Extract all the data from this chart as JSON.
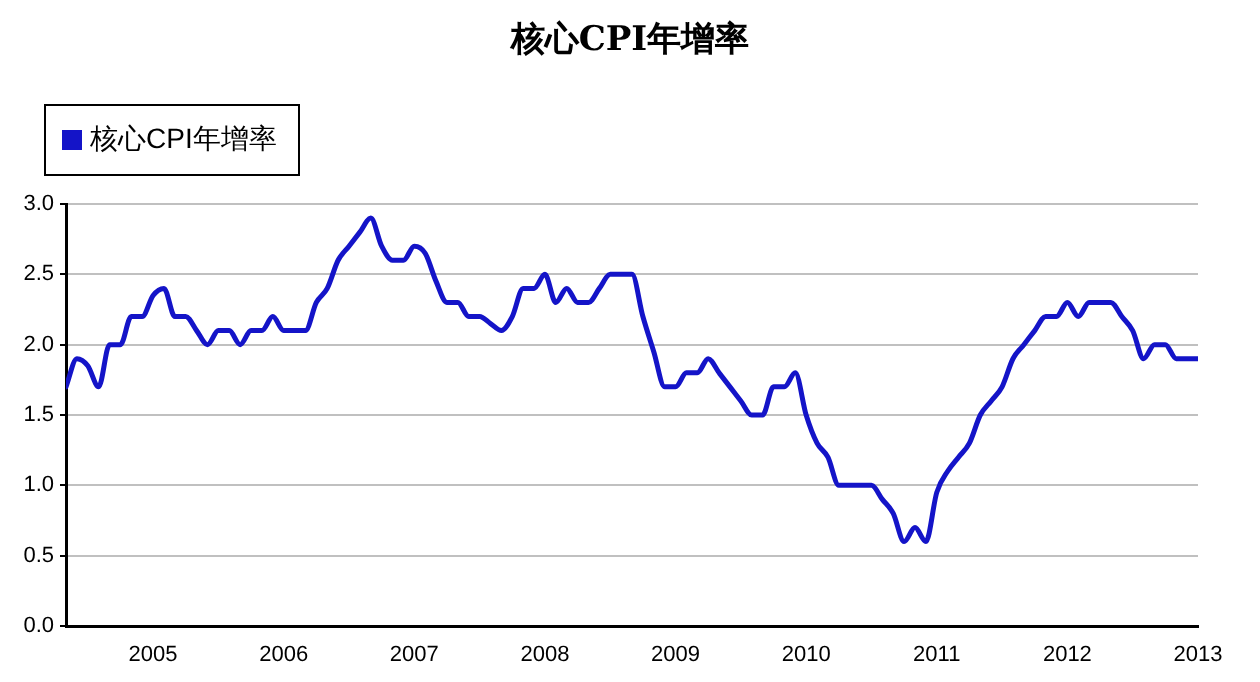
{
  "chart_data": {
    "type": "line",
    "title": "核心CPI年增率",
    "x": [
      "2004-05",
      "2004-06",
      "2004-07",
      "2004-08",
      "2004-09",
      "2004-10",
      "2004-11",
      "2004-12",
      "2005-01",
      "2005-02",
      "2005-03",
      "2005-04",
      "2005-05",
      "2005-06",
      "2005-07",
      "2005-08",
      "2005-09",
      "2005-10",
      "2005-11",
      "2005-12",
      "2006-01",
      "2006-02",
      "2006-03",
      "2006-04",
      "2006-05",
      "2006-06",
      "2006-07",
      "2006-08",
      "2006-09",
      "2006-10",
      "2006-11",
      "2006-12",
      "2007-01",
      "2007-02",
      "2007-03",
      "2007-04",
      "2007-05",
      "2007-06",
      "2007-07",
      "2007-08",
      "2007-09",
      "2007-10",
      "2007-11",
      "2007-12",
      "2008-01",
      "2008-02",
      "2008-03",
      "2008-04",
      "2008-05",
      "2008-06",
      "2008-07",
      "2008-08",
      "2008-09",
      "2008-10",
      "2008-11",
      "2008-12",
      "2009-01",
      "2009-02",
      "2009-03",
      "2009-04",
      "2009-05",
      "2009-06",
      "2009-07",
      "2009-08",
      "2009-09",
      "2009-10",
      "2009-11",
      "2009-12",
      "2010-01",
      "2010-02",
      "2010-03",
      "2010-04",
      "2010-05",
      "2010-06",
      "2010-07",
      "2010-08",
      "2010-09",
      "2010-10",
      "2010-11",
      "2010-12",
      "2011-01",
      "2011-02",
      "2011-03",
      "2011-04",
      "2011-05",
      "2011-06",
      "2011-07",
      "2011-08",
      "2011-09",
      "2011-10",
      "2011-11",
      "2011-12",
      "2012-01",
      "2012-02",
      "2012-03",
      "2012-04",
      "2012-05",
      "2012-06",
      "2012-07",
      "2012-08",
      "2012-09",
      "2012-10",
      "2012-11",
      "2012-12",
      "2013-01"
    ],
    "series": [
      {
        "name": "核心CPI年增率",
        "color": "#1414c8",
        "values": [
          1.7,
          1.9,
          1.85,
          1.7,
          2.0,
          2.0,
          2.2,
          2.2,
          2.35,
          2.4,
          2.2,
          2.2,
          2.1,
          2.0,
          2.1,
          2.1,
          2.0,
          2.1,
          2.1,
          2.2,
          2.1,
          2.1,
          2.1,
          2.3,
          2.4,
          2.6,
          2.7,
          2.8,
          2.9,
          2.7,
          2.6,
          2.6,
          2.7,
          2.65,
          2.45,
          2.3,
          2.3,
          2.2,
          2.2,
          2.15,
          2.1,
          2.2,
          2.4,
          2.4,
          2.5,
          2.3,
          2.4,
          2.3,
          2.3,
          2.4,
          2.5,
          2.5,
          2.5,
          2.2,
          1.95,
          1.7,
          1.7,
          1.8,
          1.8,
          1.9,
          1.8,
          1.7,
          1.6,
          1.5,
          1.5,
          1.7,
          1.7,
          1.8,
          1.5,
          1.3,
          1.2,
          1.0,
          1.0,
          1.0,
          1.0,
          0.9,
          0.8,
          0.6,
          0.7,
          0.6,
          0.95,
          1.1,
          1.2,
          1.3,
          1.5,
          1.6,
          1.7,
          1.9,
          2.0,
          2.1,
          2.2,
          2.2,
          2.3,
          2.2,
          2.3,
          2.3,
          2.3,
          2.2,
          2.1,
          1.9,
          2.0,
          2.0,
          1.9,
          1.9,
          1.9
        ]
      }
    ],
    "xlim": [
      "2004-05",
      "2013-01"
    ],
    "xticks": [
      "2005",
      "2006",
      "2007",
      "2008",
      "2009",
      "2010",
      "2011",
      "2012",
      "2013"
    ],
    "ylim": [
      0,
      3
    ],
    "yticks": [
      {
        "value": 0,
        "label": "0.0"
      },
      {
        "value": 0.5,
        "label": "0.5"
      },
      {
        "value": 1,
        "label": "1.0"
      },
      {
        "value": 1.5,
        "label": "1.5"
      },
      {
        "value": 2,
        "label": "2.0"
      },
      {
        "value": 2.5,
        "label": "2.5"
      },
      {
        "value": 3,
        "label": "3.0"
      }
    ],
    "grid": "y",
    "legend": "top left",
    "marker": "none",
    "line_style": "solid"
  }
}
